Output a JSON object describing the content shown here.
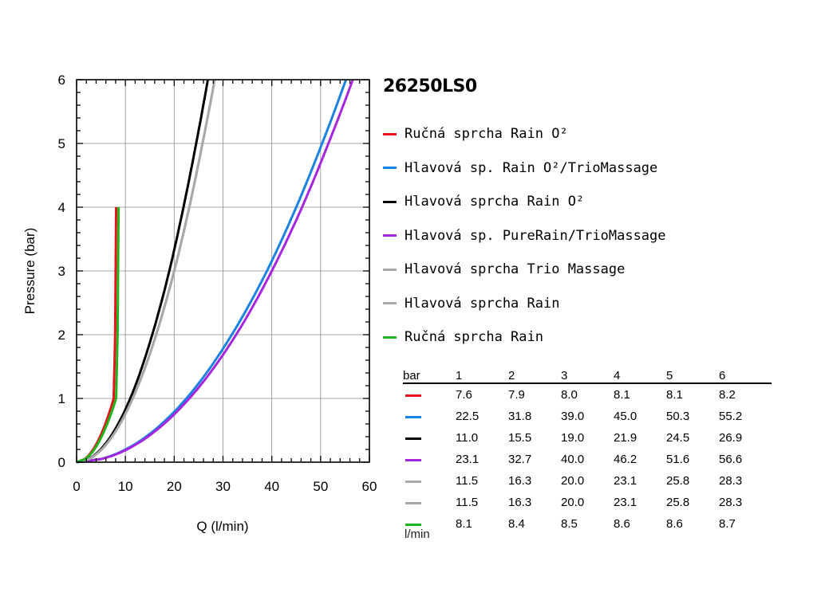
{
  "chart_data": {
    "type": "line",
    "title": "26250LS0",
    "xlabel": "Q (l/min)",
    "ylabel": "Pressure (bar)",
    "xlim": [
      0,
      60
    ],
    "ylim": [
      0,
      6
    ],
    "xticks": [
      "0",
      "10",
      "20",
      "30",
      "40",
      "50",
      "60"
    ],
    "yticks": [
      "0",
      "1",
      "2",
      "3",
      "4",
      "5",
      "6"
    ],
    "grid": true,
    "legend_position": "right",
    "x_is": "flow",
    "series": [
      {
        "name": "Ručná sprcha Rain O²",
        "color": "#e8141b",
        "values": [
          7.6,
          7.9,
          8.0,
          8.1,
          8.1,
          8.2
        ]
      },
      {
        "name": "Hlavová sp. Rain O²/TrioMassage",
        "color": "#1a82e2",
        "values": [
          22.5,
          31.8,
          39.0,
          45.0,
          50.3,
          55.2
        ]
      },
      {
        "name": "Hlavová sprcha Rain O²",
        "color": "#000000",
        "values": [
          11.0,
          15.5,
          19.0,
          21.9,
          24.5,
          26.9
        ]
      },
      {
        "name": "Hlavová sp. PureRain/TrioMassage",
        "color": "#a626e0",
        "values": [
          23.1,
          32.7,
          40.0,
          46.2,
          51.6,
          56.6
        ]
      },
      {
        "name": "Hlavová sprcha Trio Massage",
        "color": "#a8a8a8",
        "values": [
          11.5,
          16.3,
          20.0,
          23.1,
          25.8,
          28.3
        ]
      },
      {
        "name": "Hlavová sprcha Rain",
        "color": "#a8a8a8",
        "values": [
          11.5,
          16.3,
          20.0,
          23.1,
          25.8,
          28.3
        ]
      },
      {
        "name": "Ručná sprcha Rain",
        "color": "#1fb51f",
        "values": [
          8.1,
          8.4,
          8.5,
          8.6,
          8.6,
          8.7
        ]
      }
    ],
    "table": {
      "head_label": "bar",
      "pressures": [
        "1",
        "2",
        "3",
        "4",
        "5",
        "6"
      ],
      "unit_label": "l/min"
    }
  }
}
